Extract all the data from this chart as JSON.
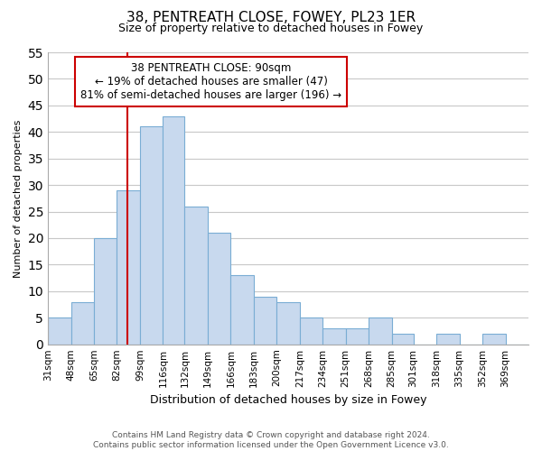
{
  "title": "38, PENTREATH CLOSE, FOWEY, PL23 1ER",
  "subtitle": "Size of property relative to detached houses in Fowey",
  "xlabel": "Distribution of detached houses by size in Fowey",
  "ylabel": "Number of detached properties",
  "footer_line1": "Contains HM Land Registry data © Crown copyright and database right 2024.",
  "footer_line2": "Contains public sector information licensed under the Open Government Licence v3.0.",
  "bar_color": "#c8d9ee",
  "bar_edge_color": "#7aadd4",
  "grid_color": "#c8c8c8",
  "marker_line_color": "#cc0000",
  "marker_value": 90,
  "categories": [
    "31sqm",
    "48sqm",
    "65sqm",
    "82sqm",
    "99sqm",
    "116sqm",
    "132sqm",
    "149sqm",
    "166sqm",
    "183sqm",
    "200sqm",
    "217sqm",
    "234sqm",
    "251sqm",
    "268sqm",
    "285sqm",
    "301sqm",
    "318sqm",
    "335sqm",
    "352sqm",
    "369sqm"
  ],
  "bin_edges": [
    31,
    48,
    65,
    82,
    99,
    116,
    132,
    149,
    166,
    183,
    200,
    217,
    234,
    251,
    268,
    285,
    301,
    318,
    335,
    352,
    369,
    386
  ],
  "values": [
    5,
    8,
    20,
    29,
    41,
    43,
    26,
    21,
    13,
    9,
    8,
    5,
    3,
    3,
    5,
    2,
    0,
    2,
    0,
    2,
    0
  ],
  "ylim": [
    0,
    55
  ],
  "yticks": [
    0,
    5,
    10,
    15,
    20,
    25,
    30,
    35,
    40,
    45,
    50,
    55
  ],
  "annotation_title": "38 PENTREATH CLOSE: 90sqm",
  "annotation_line1": "← 19% of detached houses are smaller (47)",
  "annotation_line2": "81% of semi-detached houses are larger (196) →",
  "annotation_box_color": "#ffffff",
  "annotation_box_edge_color": "#cc0000",
  "title_fontsize": 11,
  "subtitle_fontsize": 9,
  "ylabel_fontsize": 8,
  "xlabel_fontsize": 9,
  "tick_fontsize": 7.5,
  "footer_fontsize": 6.5,
  "annotation_fontsize": 8.5
}
